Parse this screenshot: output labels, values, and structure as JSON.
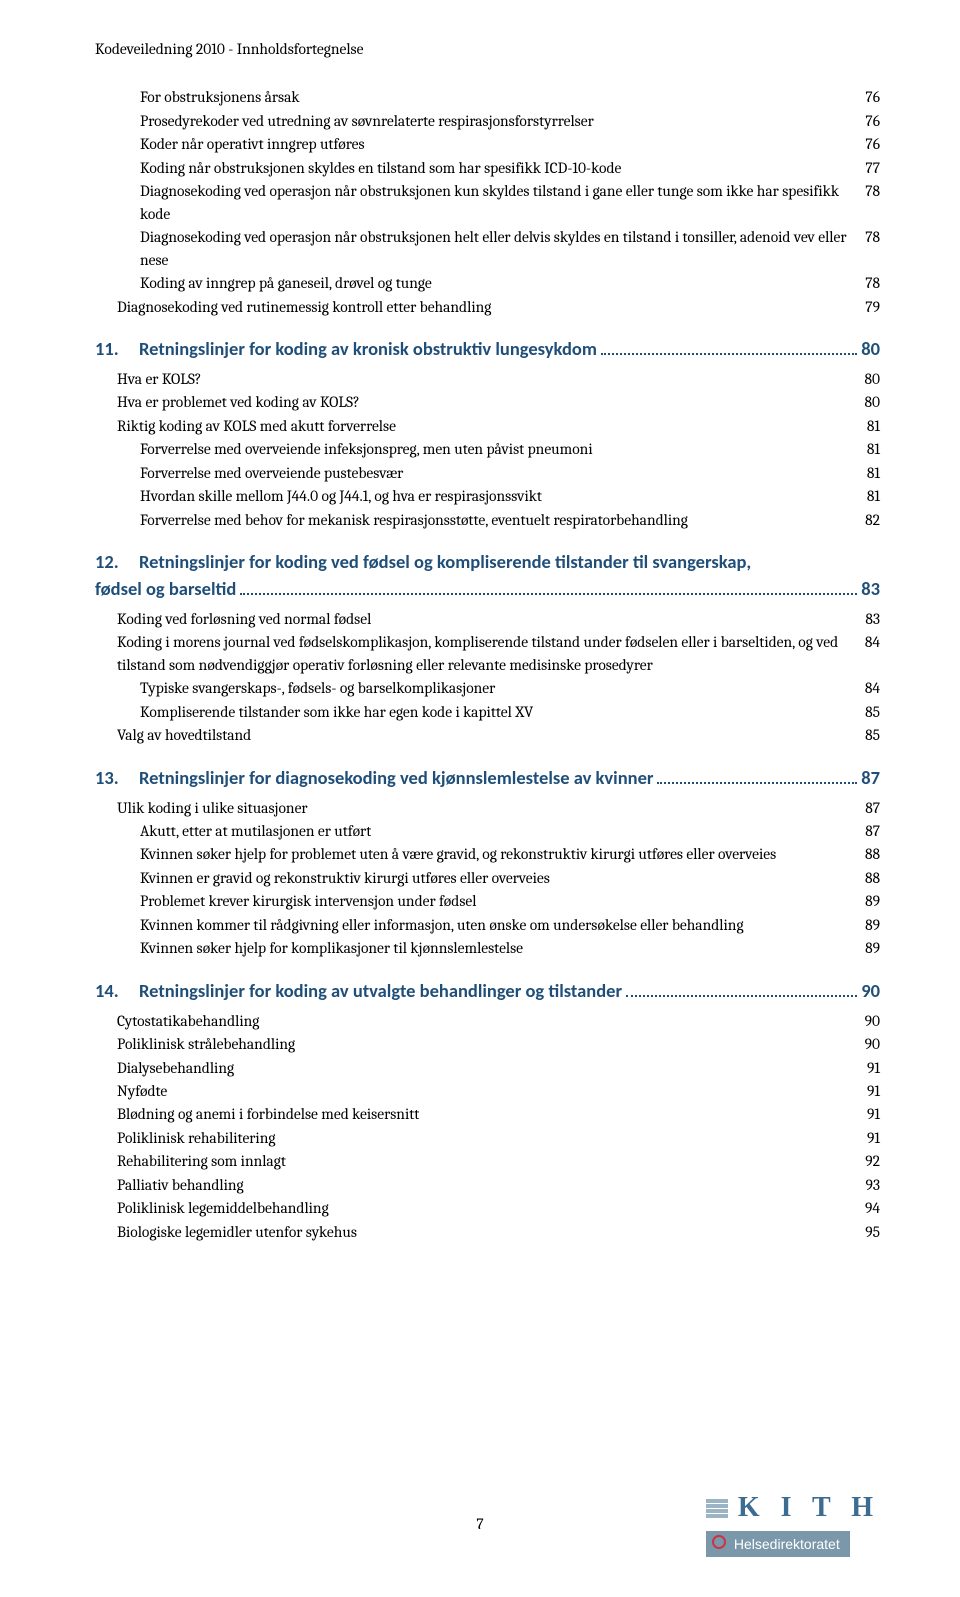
{
  "header": "Kodeveiledning 2010 - Innholdsfortegnelse",
  "page_number": "7",
  "footer_logo": {
    "brand": "K I T H",
    "org": "Helsedirektoratet"
  },
  "colors": {
    "heading": "#1f4e79",
    "body": "#000000",
    "bg": "#ffffff"
  },
  "blocks": [
    {
      "type": "entries",
      "items": [
        {
          "indent": 2,
          "label": "For obstruksjonens årsak",
          "page": "76"
        },
        {
          "indent": 2,
          "label": "Prosedyrekoder ved utredning av søvnrelaterte respirasjonsforstyrrelser",
          "page": "76"
        },
        {
          "indent": 2,
          "label": "Koder når operativt inngrep utføres",
          "page": "76"
        },
        {
          "indent": 2,
          "label": "Koding når obstruksjonen skyldes en tilstand som har spesifikk ICD-10-kode",
          "page": "77"
        },
        {
          "indent": 2,
          "label": "Diagnosekoding ved operasjon når obstruksjonen kun skyldes tilstand i gane eller tunge som ikke har spesifikk kode",
          "page": "78"
        },
        {
          "indent": 2,
          "label": "Diagnosekoding ved operasjon når obstruksjonen helt eller delvis skyldes en tilstand i tonsiller, adenoid vev eller nese",
          "page": "78"
        },
        {
          "indent": 2,
          "label": "Koding av inngrep på ganeseil, drøvel og tunge",
          "page": "78"
        },
        {
          "indent": 1,
          "label": "Diagnosekoding ved rutinemessig kontroll etter behandling",
          "page": "79"
        }
      ]
    },
    {
      "type": "section",
      "num": "11.",
      "title": "Retningslinjer for koding av kronisk obstruktiv lungesykdom",
      "page": "80",
      "items": [
        {
          "indent": 1,
          "label": "Hva er KOLS?",
          "page": "80"
        },
        {
          "indent": 1,
          "label": "Hva er problemet ved koding av KOLS?",
          "page": "80"
        },
        {
          "indent": 1,
          "label": "Riktig koding av KOLS med akutt forverrelse",
          "page": "81"
        },
        {
          "indent": 2,
          "label": "Forverrelse med overveiende infeksjonspreg, men uten påvist pneumoni",
          "page": "81"
        },
        {
          "indent": 2,
          "label": "Forverrelse med overveiende pustebesvær",
          "page": "81"
        },
        {
          "indent": 2,
          "label": "Hvordan skille mellom J44.0 og J44.1, og hva er respirasjonssvikt",
          "page": "81"
        },
        {
          "indent": 2,
          "label": "Forverrelse med behov for mekanisk respirasjonsstøtte, eventuelt respiratorbehandling",
          "page": "82"
        }
      ]
    },
    {
      "type": "section",
      "num": "12.",
      "title_line1": "Retningslinjer for koding ved fødsel og kompliserende tilstander til svangerskap,",
      "title_line2": "fødsel og barseltid",
      "page": "83",
      "multiline": true,
      "items": [
        {
          "indent": 1,
          "label": "Koding ved forløsning ved normal fødsel",
          "page": "83"
        },
        {
          "indent": 1,
          "label": "Koding i morens journal ved fødselskomplikasjon, kompliserende tilstand under fødselen eller i barseltiden, og ved tilstand som nødvendiggjør operativ forløsning eller relevante medisinske prosedyrer",
          "page": "84"
        },
        {
          "indent": 2,
          "label": "Typiske svangerskaps-, fødsels- og barselkomplikasjoner",
          "page": "84"
        },
        {
          "indent": 2,
          "label": "Kompliserende tilstander som ikke har egen kode i kapittel XV",
          "page": "85"
        },
        {
          "indent": 1,
          "label": "Valg av hovedtilstand",
          "page": "85"
        }
      ]
    },
    {
      "type": "section",
      "num": "13.",
      "title": "Retningslinjer for diagnosekoding ved kjønnslemlestelse av kvinner",
      "page": "87",
      "items": [
        {
          "indent": 1,
          "label": "Ulik koding i ulike situasjoner",
          "page": "87"
        },
        {
          "indent": 2,
          "label": "Akutt, etter at mutilasjonen er utført",
          "page": "87"
        },
        {
          "indent": 2,
          "label": "Kvinnen søker hjelp for problemet uten å være gravid, og rekonstruktiv kirurgi utføres eller overveies",
          "page": "88"
        },
        {
          "indent": 2,
          "label": "Kvinnen er gravid og rekonstruktiv kirurgi utføres eller overveies",
          "page": "88"
        },
        {
          "indent": 2,
          "label": "Problemet krever kirurgisk intervensjon under fødsel",
          "page": "89"
        },
        {
          "indent": 2,
          "label": "Kvinnen kommer til rådgivning eller informasjon, uten ønske om undersøkelse eller behandling",
          "page": "89"
        },
        {
          "indent": 2,
          "label": "Kvinnen søker hjelp for komplikasjoner til kjønnslemlestelse",
          "page": "89"
        }
      ]
    },
    {
      "type": "section",
      "num": "14.",
      "title": "Retningslinjer for koding av utvalgte behandlinger og tilstander",
      "page": "90",
      "items": [
        {
          "indent": 1,
          "label": "Cytostatikabehandling",
          "page": "90"
        },
        {
          "indent": 1,
          "label": "Poliklinisk strålebehandling",
          "page": "90"
        },
        {
          "indent": 1,
          "label": "Dialysebehandling",
          "page": "91"
        },
        {
          "indent": 1,
          "label": "Nyfødte",
          "page": "91"
        },
        {
          "indent": 1,
          "label": "Blødning og anemi i forbindelse med keisersnitt",
          "page": "91"
        },
        {
          "indent": 1,
          "label": "Poliklinisk rehabilitering",
          "page": "91"
        },
        {
          "indent": 1,
          "label": "Rehabilitering som innlagt",
          "page": "92"
        },
        {
          "indent": 1,
          "label": "Palliativ behandling",
          "page": "93"
        },
        {
          "indent": 1,
          "label": "Poliklinisk legemiddelbehandling",
          "page": "94"
        },
        {
          "indent": 1,
          "label": "Biologiske legemidler utenfor sykehus",
          "page": "95"
        }
      ]
    }
  ]
}
